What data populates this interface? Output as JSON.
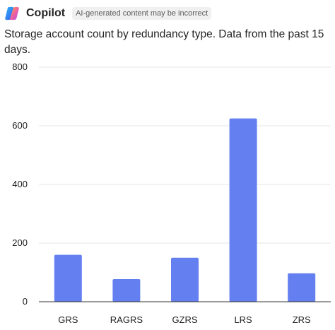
{
  "header": {
    "app_name": "Copilot",
    "disclaimer": "AI-generated content may be incorrect",
    "logo_icon": "copilot-logo-icon"
  },
  "message": {
    "text": "Storage account count by redundancy type. Data from the past 15 days."
  },
  "colors": {
    "bar": "#647FF0",
    "grid": "#e6e6e6",
    "axis": "#333333"
  },
  "chart_data": {
    "type": "bar",
    "categories": [
      "GRS",
      "RAGRS",
      "GZRS",
      "LRS",
      "ZRS"
    ],
    "values": [
      160,
      77,
      150,
      625,
      97
    ],
    "ylim": [
      0,
      800
    ],
    "yticks": [
      0,
      200,
      400,
      600,
      800
    ],
    "grid": true,
    "title": "",
    "xlabel": "",
    "ylabel": ""
  }
}
